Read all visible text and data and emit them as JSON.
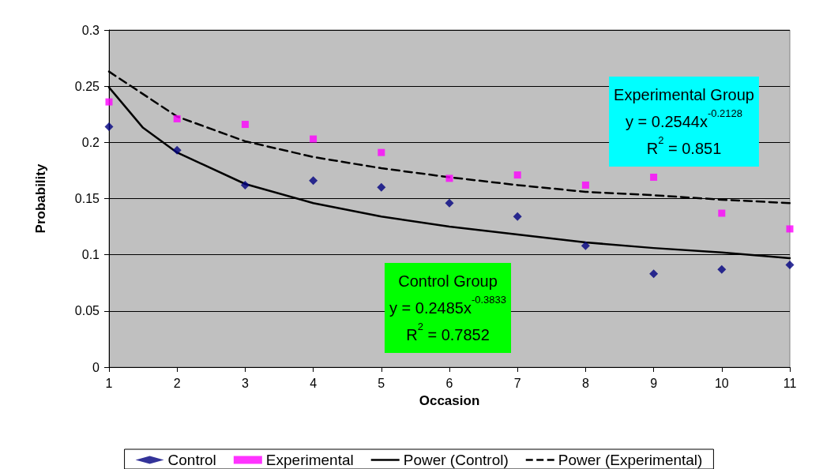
{
  "chart_data": {
    "type": "scatter",
    "xlabel": "Occasion",
    "ylabel": "Probability",
    "xlim": [
      1,
      11
    ],
    "xticks": [
      1,
      2,
      3,
      4,
      5,
      6,
      7,
      8,
      9,
      10,
      11
    ],
    "ylim": [
      0,
      0.3
    ],
    "yticks": [
      0,
      0.05,
      0.1,
      0.15,
      0.2,
      0.25,
      0.3
    ],
    "grid": "y",
    "legend": "bottom",
    "annotations": [
      "Experimental Group\ny = 0.2544x$^{-0.2128}$\nR$^{2}$ = 0.851",
      "Control Group\ny = 0.2485x$^{-0.3833}$\nR$^{2}$ = 0.7852"
    ],
    "series": [
      {
        "name": "Control",
        "type": "scatter",
        "marker": "diamond",
        "color": "#000080",
        "x": [
          1,
          2,
          3,
          4,
          5,
          6,
          7,
          8,
          9,
          10,
          11
        ],
        "values": [
          0.214,
          0.193,
          0.162,
          0.166,
          0.16,
          0.146,
          0.134,
          0.108,
          0.083,
          0.087,
          0.091
        ]
      },
      {
        "name": "Experimental",
        "type": "scatter",
        "marker": "square",
        "color": "#ff00ff",
        "x": [
          1,
          2,
          3,
          4,
          5,
          6,
          7,
          8,
          9,
          10,
          11
        ],
        "values": [
          0.236,
          0.221,
          0.216,
          0.203,
          0.191,
          0.168,
          0.171,
          0.162,
          0.169,
          0.137,
          0.123
        ]
      },
      {
        "name": "Power (Control)",
        "type": "line",
        "marker": "none",
        "line_style": "solid",
        "color": "#000000",
        "x": [
          1,
          1.5,
          2,
          3,
          4,
          5,
          6,
          7,
          8,
          9,
          10,
          11
        ],
        "values": [
          0.249,
          0.213,
          0.191,
          0.163,
          0.146,
          0.134,
          0.125,
          0.118,
          0.111,
          0.106,
          0.102,
          0.097
        ]
      },
      {
        "name": "Power (Experimental)",
        "type": "line",
        "marker": "none",
        "line_style": "dashed",
        "color": "#000000",
        "x": [
          1,
          2,
          3,
          4,
          5,
          6,
          7,
          8,
          9,
          10,
          11
        ],
        "values": [
          0.263,
          0.223,
          0.201,
          0.187,
          0.177,
          0.169,
          0.162,
          0.156,
          0.153,
          0.149,
          0.146
        ]
      }
    ]
  }
}
